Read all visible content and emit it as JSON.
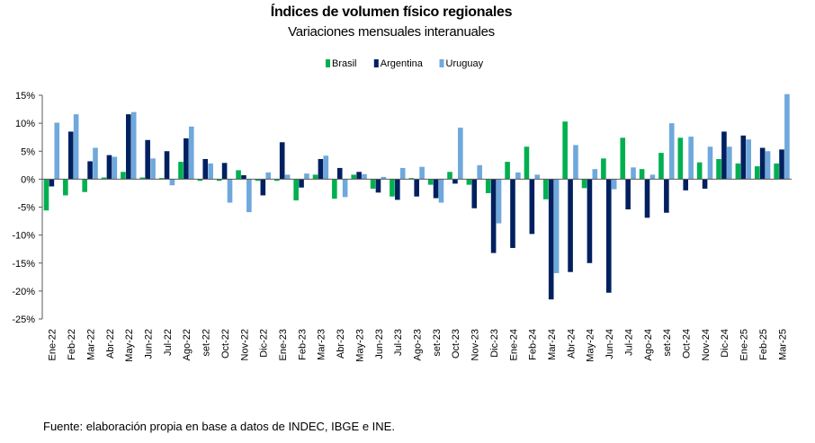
{
  "chart_data": {
    "type": "bar",
    "title": "Índices de volumen físico regionales",
    "subtitle": "Variaciones mensuales interanuales",
    "source": "Fuente: elaboración propia en base a datos de INDEC, IBGE e INE.",
    "ylim": [
      -25,
      15
    ],
    "yticks": [
      15,
      10,
      5,
      0,
      -5,
      -10,
      -15,
      -20,
      -25
    ],
    "ytick_labels": [
      "15%",
      "10%",
      "5%",
      "0%",
      "-5%",
      "-10%",
      "-15%",
      "-20%",
      "-25%"
    ],
    "legend_position": "top-center",
    "categories": [
      "Ene-22",
      "Feb-22",
      "Mar-22",
      "Abr-22",
      "May-22",
      "Jun-22",
      "Jul-22",
      "Ago-22",
      "set-22",
      "Oct-22",
      "Nov-22",
      "Dic-22",
      "Ene-23",
      "Feb-23",
      "Mar-23",
      "Abr-23",
      "May-23",
      "Jun-23",
      "Jul-23",
      "Ago-23",
      "set-23",
      "Oct-23",
      "Nov-23",
      "Dic-23",
      "Ene-24",
      "Feb-24",
      "Mar-24",
      "Abr-24",
      "May-24",
      "Jun-24",
      "Jul-24",
      "Ago-24",
      "set-24",
      "Oct-24",
      "Nov-24",
      "Dic-24",
      "Ene-25",
      "Feb-25",
      "Mar-25"
    ],
    "series": [
      {
        "name": "Brasil",
        "color": "#00B050",
        "values": [
          -5.6,
          -2.9,
          -2.3,
          0.3,
          1.3,
          0.3,
          0.2,
          3.1,
          -0.3,
          -0.3,
          1.6,
          -0.3,
          -0.3,
          -3.8,
          0.8,
          -3.5,
          0.8,
          -1.7,
          -3.1,
          0.2,
          -1.0,
          1.3,
          -1.0,
          -2.5,
          3.1,
          5.8,
          -3.6,
          10.3,
          -1.6,
          3.7,
          7.4,
          1.8,
          4.7,
          7.4,
          3.0,
          3.6,
          2.8,
          2.3,
          2.8
        ]
      },
      {
        "name": "Argentina",
        "color": "#002060",
        "values": [
          -1.3,
          8.5,
          3.2,
          4.3,
          11.6,
          7.0,
          5.0,
          7.3,
          3.6,
          2.9,
          0.7,
          -2.9,
          6.6,
          -1.5,
          3.6,
          2.0,
          1.3,
          -2.4,
          -3.7,
          -3.1,
          -3.4,
          -0.8,
          -5.2,
          -13.2,
          -12.3,
          -9.8,
          -21.5,
          -16.6,
          -15.0,
          -20.3,
          -5.4,
          -6.9,
          -6.0,
          -2.0,
          -1.7,
          8.5,
          7.8,
          5.6,
          5.3
        ]
      },
      {
        "name": "Uruguay",
        "color": "#6FA8DC",
        "values": [
          10.1,
          11.6,
          5.6,
          4.0,
          12.0,
          3.7,
          -1.1,
          9.4,
          2.8,
          -4.2,
          -5.9,
          1.2,
          0.8,
          1.0,
          4.2,
          -3.2,
          0.9,
          0.4,
          2.0,
          2.2,
          -4.2,
          9.2,
          2.5,
          -7.9,
          1.2,
          0.8,
          -16.8,
          6.1,
          1.8,
          -1.8,
          2.1,
          0.8,
          10.0,
          7.6,
          5.8,
          5.8,
          7.1,
          5.0,
          15.2
        ]
      }
    ]
  }
}
